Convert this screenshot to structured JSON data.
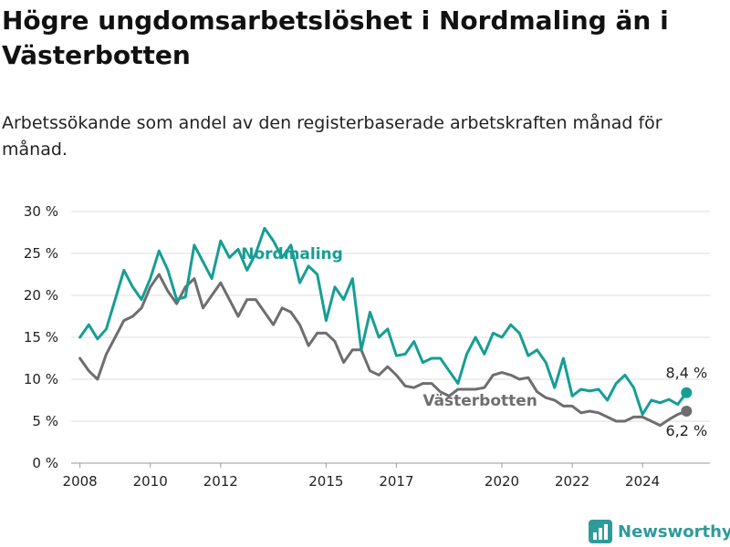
{
  "header": {
    "title": "Högre ungdomsarbetslöshet i Nordmaling än i Västerbotten",
    "subtitle": "Arbetssökande som andel av den registerbaserade arbetskraften månad för månad."
  },
  "brand": {
    "name": "Newsworthy",
    "icon": "bar-chart-logo-icon",
    "color": "#2f9a9a"
  },
  "chart_data": {
    "type": "line",
    "title": "Högre ungdomsarbetslöshet i Nordmaling än i Västerbotten",
    "subtitle": "Arbetssökande som andel av den registerbaserade arbetskraften månad för månad.",
    "xlabel": "",
    "ylabel": "",
    "x_ticks": [
      "2008",
      "2010",
      "2012",
      "2015",
      "2017",
      "2020",
      "2022",
      "2024"
    ],
    "y_ticks": [
      "0 %",
      "5 %",
      "10 %",
      "15 %",
      "20 %",
      "25 %",
      "30 %"
    ],
    "ylim": [
      0,
      30
    ],
    "xlim": [
      "2007-10",
      "2025-12"
    ],
    "grid": true,
    "legend": "none (direct labels on lines)",
    "x": [
      "2008-01",
      "2008-04",
      "2008-07",
      "2008-10",
      "2009-01",
      "2009-04",
      "2009-07",
      "2009-10",
      "2010-01",
      "2010-04",
      "2010-07",
      "2010-10",
      "2011-01",
      "2011-04",
      "2011-07",
      "2011-10",
      "2012-01",
      "2012-04",
      "2012-07",
      "2012-10",
      "2013-01",
      "2013-04",
      "2013-07",
      "2013-10",
      "2014-01",
      "2014-04",
      "2014-07",
      "2014-10",
      "2015-01",
      "2015-04",
      "2015-07",
      "2015-10",
      "2016-01",
      "2016-04",
      "2016-07",
      "2016-10",
      "2017-01",
      "2017-04",
      "2017-07",
      "2017-10",
      "2018-01",
      "2018-04",
      "2018-07",
      "2018-10",
      "2019-01",
      "2019-04",
      "2019-07",
      "2019-10",
      "2020-01",
      "2020-04",
      "2020-07",
      "2020-10",
      "2021-01",
      "2021-04",
      "2021-07",
      "2021-10",
      "2022-01",
      "2022-04",
      "2022-07",
      "2022-10",
      "2023-01",
      "2023-04",
      "2023-07",
      "2023-10",
      "2024-01",
      "2024-04",
      "2024-07",
      "2024-10",
      "2025-01",
      "2025-04"
    ],
    "series": [
      {
        "name": "Nordmaling",
        "color": "#169e94",
        "end_label": "8,4 %",
        "values": [
          15.0,
          16.5,
          14.8,
          16.0,
          19.5,
          23.0,
          21.0,
          19.5,
          22.0,
          25.3,
          23.0,
          19.5,
          19.8,
          26.0,
          24.0,
          22.0,
          26.5,
          24.5,
          25.5,
          23.0,
          25.0,
          28.0,
          26.5,
          24.5,
          26.0,
          21.5,
          23.5,
          22.5,
          17.0,
          21.0,
          19.5,
          22.0,
          13.5,
          18.0,
          15.0,
          16.0,
          12.8,
          13.0,
          14.5,
          12.0,
          12.5,
          12.5,
          11.0,
          9.5,
          13.0,
          15.0,
          13.0,
          15.5,
          15.0,
          16.5,
          15.5,
          12.8,
          13.5,
          12.0,
          9.0,
          12.5,
          8.0,
          8.8,
          8.6,
          8.8,
          7.5,
          9.5,
          10.5,
          9.0,
          5.8,
          7.5,
          7.2,
          7.6,
          7.0,
          8.4
        ]
      },
      {
        "name": "Västerbotten",
        "color": "#6e6e70",
        "end_label": "6,2 %",
        "values": [
          12.5,
          11.0,
          10.0,
          13.0,
          15.0,
          17.0,
          17.5,
          18.5,
          21.0,
          22.5,
          20.5,
          19.0,
          21.0,
          22.0,
          18.5,
          20.0,
          21.5,
          19.5,
          17.5,
          19.5,
          19.5,
          18.0,
          16.5,
          18.5,
          18.0,
          16.5,
          14.0,
          15.5,
          15.5,
          14.5,
          12.0,
          13.5,
          13.5,
          11.0,
          10.5,
          11.5,
          10.5,
          9.2,
          9.0,
          9.5,
          9.5,
          8.5,
          8.0,
          8.8,
          8.8,
          8.8,
          9.0,
          10.5,
          10.8,
          10.5,
          10.0,
          10.2,
          8.5,
          7.8,
          7.5,
          6.8,
          6.8,
          6.0,
          6.2,
          6.0,
          5.5,
          5.0,
          5.0,
          5.5,
          5.5,
          5.0,
          4.5,
          5.2,
          5.8,
          6.2
        ]
      }
    ]
  }
}
